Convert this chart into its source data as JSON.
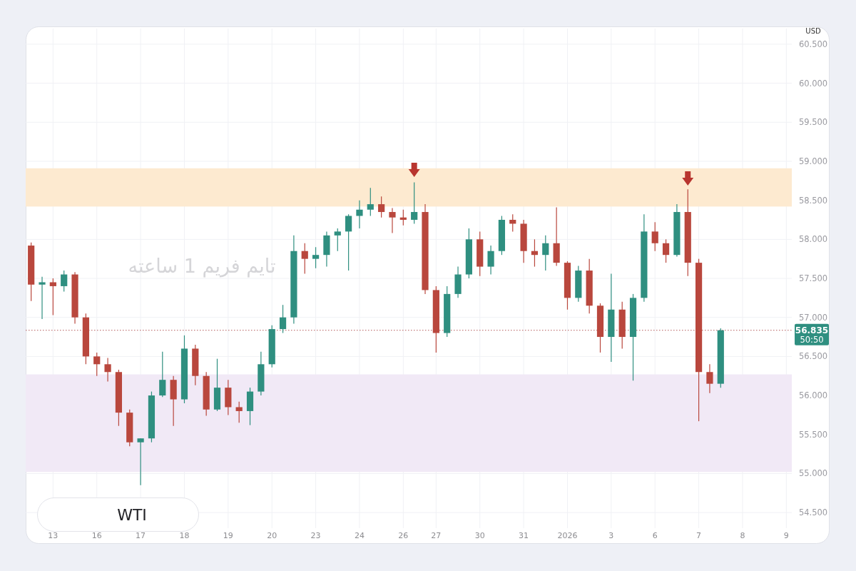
{
  "chart_data": {
    "type": "candlestick",
    "title": "WTI",
    "ylabel": "USD",
    "categories": [
      null,
      null,
      "13",
      null,
      null,
      null,
      "16",
      null,
      null,
      null,
      "17",
      null,
      null,
      null,
      "18",
      null,
      null,
      null,
      "19",
      null,
      null,
      null,
      "20",
      null,
      null,
      null,
      "23",
      null,
      null,
      null,
      "24",
      null,
      null,
      null,
      "26",
      null,
      null,
      "27",
      null,
      null,
      null,
      "30",
      null,
      null,
      null,
      "31",
      null,
      null,
      null,
      "2026",
      null,
      null,
      null,
      "3",
      null,
      null,
      null,
      "6",
      null,
      null,
      null,
      "7",
      null,
      null,
      null,
      "8",
      null,
      null,
      null,
      "9"
    ],
    "ohlc": [
      [
        57.92,
        57.96,
        57.21,
        57.42
      ],
      [
        57.42,
        57.52,
        56.98,
        57.45
      ],
      [
        57.45,
        57.5,
        57.03,
        57.4
      ],
      [
        57.4,
        57.6,
        57.33,
        57.55
      ],
      [
        57.55,
        57.58,
        56.92,
        57.0
      ],
      [
        57.0,
        57.05,
        56.4,
        56.5
      ],
      [
        56.5,
        56.55,
        56.25,
        56.4
      ],
      [
        56.4,
        56.48,
        56.18,
        56.3
      ],
      [
        56.3,
        56.33,
        55.61,
        55.78
      ],
      [
        55.78,
        55.82,
        55.35,
        55.4
      ],
      [
        55.4,
        55.45,
        54.85,
        55.45
      ],
      [
        55.45,
        56.05,
        55.4,
        56.0
      ],
      [
        56.0,
        56.56,
        55.98,
        56.2
      ],
      [
        56.2,
        56.25,
        55.61,
        55.95
      ],
      [
        55.95,
        56.77,
        55.9,
        56.6
      ],
      [
        56.6,
        56.65,
        56.13,
        56.25
      ],
      [
        56.25,
        56.3,
        55.74,
        55.82
      ],
      [
        55.82,
        56.47,
        55.8,
        56.1
      ],
      [
        56.1,
        56.2,
        55.75,
        55.85
      ],
      [
        55.85,
        55.92,
        55.65,
        55.8
      ],
      [
        55.8,
        56.1,
        55.62,
        56.05
      ],
      [
        56.05,
        56.56,
        56.0,
        56.4
      ],
      [
        56.4,
        56.9,
        56.36,
        56.85
      ],
      [
        56.85,
        57.16,
        56.8,
        57.0
      ],
      [
        57.0,
        58.05,
        56.92,
        57.85
      ],
      [
        57.85,
        57.95,
        57.56,
        57.75
      ],
      [
        57.75,
        57.9,
        57.63,
        57.8
      ],
      [
        57.8,
        58.1,
        57.65,
        58.05
      ],
      [
        58.05,
        58.14,
        57.85,
        58.1
      ],
      [
        58.1,
        58.32,
        57.6,
        58.3
      ],
      [
        58.3,
        58.5,
        58.14,
        58.38
      ],
      [
        58.38,
        58.66,
        58.3,
        58.45
      ],
      [
        58.45,
        58.55,
        58.28,
        58.35
      ],
      [
        58.35,
        58.4,
        58.08,
        58.28
      ],
      [
        58.28,
        58.38,
        58.18,
        58.25
      ],
      [
        58.25,
        58.73,
        58.2,
        58.35
      ],
      [
        58.35,
        58.45,
        57.3,
        57.35
      ],
      [
        57.35,
        57.4,
        56.55,
        56.8
      ],
      [
        56.8,
        57.4,
        56.75,
        57.3
      ],
      [
        57.3,
        57.65,
        57.25,
        57.55
      ],
      [
        57.55,
        58.14,
        57.5,
        58.0
      ],
      [
        58.0,
        58.1,
        57.53,
        57.65
      ],
      [
        57.65,
        57.92,
        57.55,
        57.85
      ],
      [
        57.85,
        58.3,
        57.8,
        58.25
      ],
      [
        58.25,
        58.32,
        58.1,
        58.2
      ],
      [
        58.2,
        58.25,
        57.7,
        57.85
      ],
      [
        57.85,
        58.0,
        57.65,
        57.8
      ],
      [
        57.8,
        58.05,
        57.6,
        57.95
      ],
      [
        57.95,
        58.41,
        57.66,
        57.7
      ],
      [
        57.7,
        57.72,
        57.1,
        57.25
      ],
      [
        57.25,
        57.66,
        57.2,
        57.6
      ],
      [
        57.6,
        57.75,
        57.05,
        57.15
      ],
      [
        57.15,
        57.18,
        56.55,
        56.75
      ],
      [
        56.75,
        57.56,
        56.43,
        57.1
      ],
      [
        57.1,
        57.2,
        56.6,
        56.75
      ],
      [
        56.75,
        57.3,
        56.19,
        57.25
      ],
      [
        57.25,
        58.32,
        57.2,
        58.1
      ],
      [
        58.1,
        58.22,
        57.85,
        57.95
      ],
      [
        57.95,
        58.0,
        57.7,
        57.8
      ],
      [
        57.8,
        58.45,
        57.78,
        58.35
      ],
      [
        58.35,
        58.64,
        57.53,
        57.7
      ],
      [
        57.7,
        57.75,
        55.67,
        56.3
      ],
      [
        56.3,
        56.4,
        56.03,
        56.15
      ],
      [
        56.15,
        56.86,
        56.1,
        56.835
      ],
      null,
      null,
      null,
      null,
      null,
      null
    ],
    "colors": [
      "#b9473d",
      "#2f8f80",
      "#b9473d",
      "#2f8f80",
      "#b9473d",
      "#b9473d",
      "#b9473d",
      "#b9473d",
      "#b9473d",
      "#b9473d",
      "#2f8f80",
      "#2f8f80",
      "#2f8f80",
      "#b9473d",
      "#2f8f80",
      "#b9473d",
      "#b9473d",
      "#2f8f80",
      "#b9473d",
      "#b9473d",
      "#2f8f80",
      "#2f8f80",
      "#2f8f80",
      "#2f8f80",
      "#2f8f80",
      "#b9473d",
      "#2f8f80",
      "#2f8f80",
      "#2f8f80",
      "#2f8f80",
      "#2f8f80",
      "#2f8f80",
      "#b9473d",
      "#b9473d",
      "#b9473d",
      "#2f8f80",
      "#b9473d",
      "#b9473d",
      "#2f8f80",
      "#2f8f80",
      "#2f8f80",
      "#b9473d",
      "#2f8f80",
      "#2f8f80",
      "#b9473d",
      "#b9473d",
      "#b9473d",
      "#2f8f80",
      "#b9473d",
      "#b9473d",
      "#2f8f80",
      "#b9473d",
      "#b9473d",
      "#2f8f80",
      "#b9473d",
      "#2f8f80",
      "#2f8f80",
      "#b9473d",
      "#b9473d",
      "#2f8f80",
      "#b9473d",
      "#b9473d",
      "#b9473d",
      "#2f8f80",
      null,
      null,
      null,
      null,
      null,
      null
    ],
    "series": [
      {
        "type": "scatter",
        "marker": "triangle",
        "color": "#b8352f",
        "values": [
          null,
          null,
          null,
          null,
          null,
          null,
          null,
          null,
          null,
          null,
          null,
          null,
          null,
          null,
          null,
          null,
          null,
          null,
          null,
          null,
          null,
          null,
          null,
          null,
          null,
          null,
          null,
          null,
          null,
          null,
          null,
          null,
          null,
          null,
          null,
          58.89,
          null,
          null,
          null,
          null,
          null,
          null,
          null,
          null,
          null,
          null,
          null,
          null,
          null,
          null,
          null,
          null,
          null,
          null,
          null,
          null,
          null,
          null,
          null,
          null,
          58.78,
          null,
          null,
          null,
          null,
          null,
          null,
          null,
          null,
          null
        ]
      }
    ],
    "ylim": [
      54.3,
      60.7
    ],
    "yticks": [
      {
        "value": 54.5,
        "label": "54.500"
      },
      {
        "value": 55,
        "label": "55.000"
      },
      {
        "value": 55.5,
        "label": "55.500"
      },
      {
        "value": 56,
        "label": "56.000"
      },
      {
        "value": 56.5,
        "label": "56.500"
      },
      {
        "value": 57,
        "label": "57.000"
      },
      {
        "value": 57.5,
        "label": "57.500"
      },
      {
        "value": 58,
        "label": "58.000"
      },
      {
        "value": 58.5,
        "label": "58.500"
      },
      {
        "value": 59,
        "label": "59.000"
      },
      {
        "value": 59.5,
        "label": "59.500"
      },
      {
        "value": 60,
        "label": "60.000"
      },
      {
        "value": 60.5,
        "label": "60.500"
      }
    ],
    "grid": true,
    "ref_lines": [
      {
        "axis": "y",
        "value": 56.835,
        "label": "56.835",
        "color": "#b35a5a",
        "line_style": "dotted"
      }
    ],
    "bands": [
      {
        "axis": "y",
        "from": 58.42,
        "to": 58.91,
        "color": "#fdead0"
      },
      {
        "axis": "y",
        "from": 55.02,
        "to": 56.27,
        "color": "#f1e9f6"
      }
    ],
    "annotations": [
      "تایم فریم 1 ساعته",
      "50:50"
    ]
  }
}
